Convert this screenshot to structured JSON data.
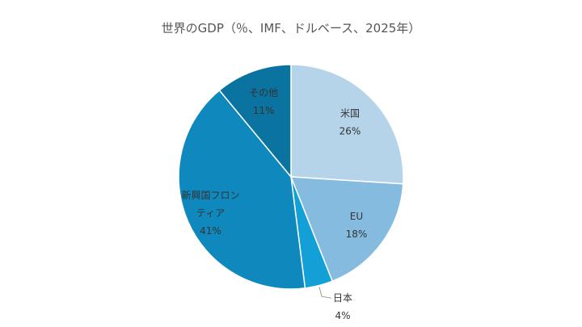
{
  "chart_data": {
    "type": "pie",
    "title": "世界のGDP（％、IMF、ドルベース、2025年）",
    "start": "top",
    "direction": "clockwise",
    "slices": [
      {
        "label": "米国",
        "value": 26,
        "value_label": "26%",
        "color": "#b5d4ea"
      },
      {
        "label": "EU",
        "value": 18,
        "value_label": "18%",
        "color": "#86bbe0"
      },
      {
        "label": "日本",
        "value": 4,
        "value_label": "4%",
        "color": "#13a0d6"
      },
      {
        "label": "新興国フロンティア",
        "label_lines": [
          "新興国フロン",
          "ティア"
        ],
        "value": 41,
        "value_label": "41%",
        "color": "#0e88bd"
      },
      {
        "label": "その他",
        "value": 11,
        "value_label": "11%",
        "color": "#0b73a0"
      }
    ]
  }
}
